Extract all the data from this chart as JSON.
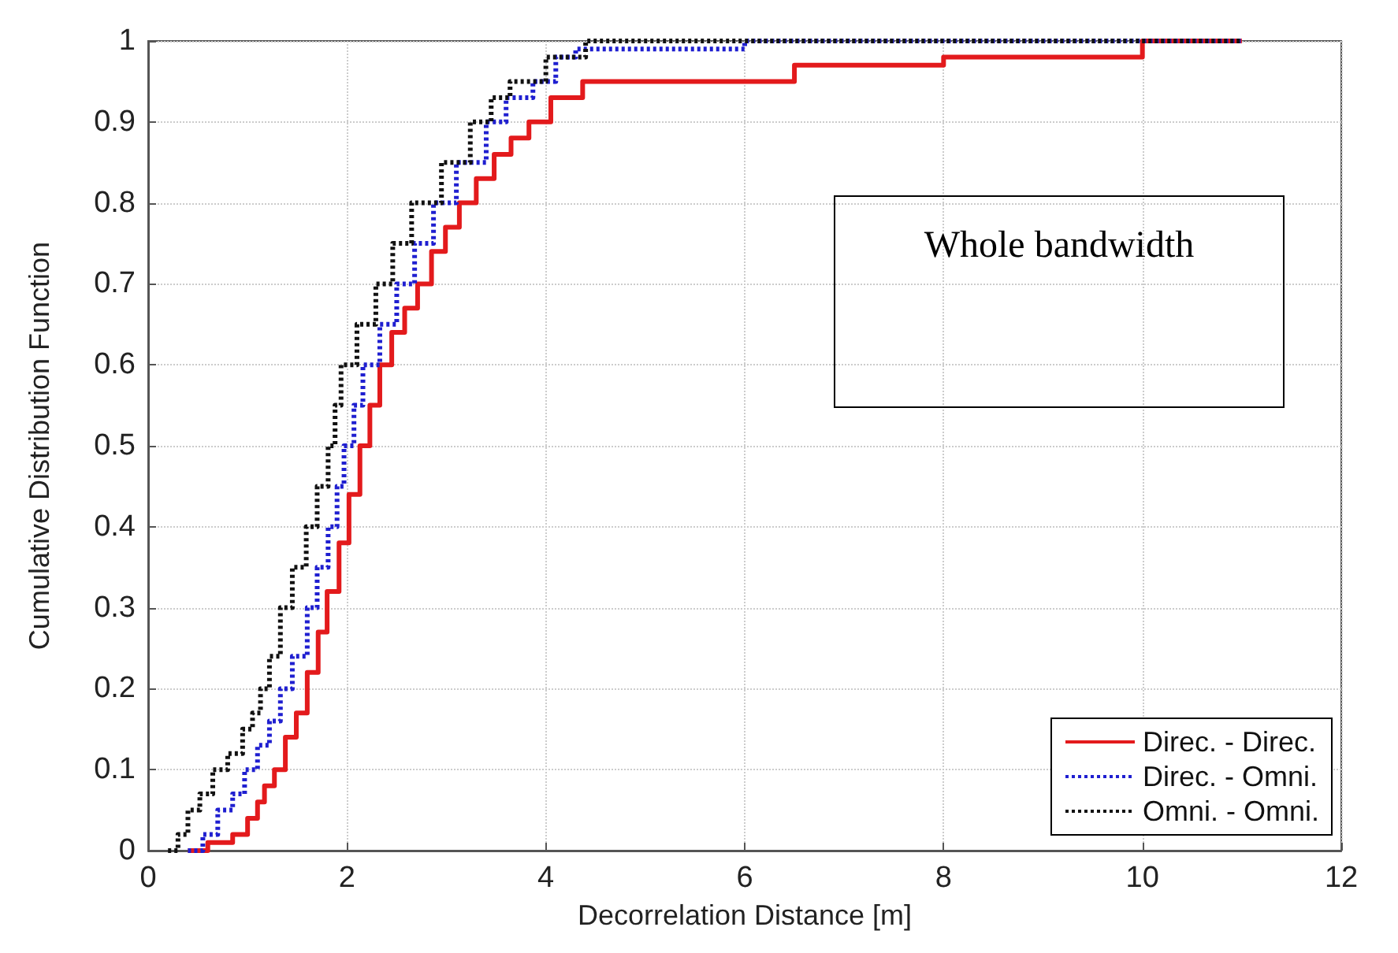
{
  "chart_data": {
    "type": "step",
    "xlabel": "Decorrelation Distance [m]",
    "ylabel": "Cumulative Distribution Function",
    "annotations": [
      "Whole bandwidth"
    ],
    "xlim": [
      0,
      12
    ],
    "xticks": [
      0,
      2,
      4,
      6,
      8,
      10,
      12
    ],
    "ylim": [
      0,
      1
    ],
    "yticks": [
      0,
      0.1,
      0.2,
      0.3,
      0.4,
      0.5,
      0.6,
      0.7,
      0.8,
      0.9,
      1
    ],
    "grid": true,
    "legend": "bottom right",
    "series": [
      {
        "name": "Direc. - Direc.",
        "color": "#e31a1c",
        "line_style": "solid",
        "x": [
          0.4,
          0.6,
          0.85,
          1.0,
          1.1,
          1.17,
          1.27,
          1.38,
          1.49,
          1.6,
          1.71,
          1.8,
          1.92,
          2.02,
          2.13,
          2.23,
          2.33,
          2.45,
          2.58,
          2.71,
          2.85,
          2.99,
          3.13,
          3.3,
          3.48,
          3.65,
          3.83,
          4.05,
          4.37,
          6.5,
          8,
          10,
          11
        ],
        "values": [
          0,
          0.01,
          0.02,
          0.04,
          0.06,
          0.08,
          0.1,
          0.14,
          0.17,
          0.22,
          0.27,
          0.32,
          0.38,
          0.44,
          0.5,
          0.55,
          0.6,
          0.64,
          0.67,
          0.7,
          0.74,
          0.77,
          0.8,
          0.83,
          0.86,
          0.88,
          0.9,
          0.93,
          0.95,
          0.97,
          0.98,
          1,
          1
        ]
      },
      {
        "name": "Direc. - Omni.",
        "color": "#1f1fd0",
        "line_style": "dotted",
        "x": [
          0.4,
          0.55,
          0.7,
          0.85,
          0.97,
          1.1,
          1.22,
          1.33,
          1.45,
          1.6,
          1.7,
          1.81,
          1.9,
          1.97,
          2.07,
          2.16,
          2.33,
          2.5,
          2.68,
          2.87,
          3.1,
          3.4,
          3.6,
          3.87,
          4.1,
          4.3,
          6,
          11
        ],
        "values": [
          0,
          0.02,
          0.05,
          0.07,
          0.1,
          0.13,
          0.16,
          0.2,
          0.24,
          0.3,
          0.35,
          0.4,
          0.45,
          0.5,
          0.55,
          0.6,
          0.65,
          0.7,
          0.75,
          0.8,
          0.85,
          0.9,
          0.93,
          0.95,
          0.98,
          0.99,
          1,
          1
        ]
      },
      {
        "name": "Omni. - Omni.",
        "color": "#111111",
        "line_style": "dotted",
        "x": [
          0.2,
          0.3,
          0.4,
          0.52,
          0.65,
          0.8,
          0.95,
          1.05,
          1.13,
          1.22,
          1.33,
          1.45,
          1.59,
          1.7,
          1.81,
          1.88,
          1.94,
          2.1,
          2.29,
          2.46,
          2.65,
          2.95,
          3.24,
          3.45,
          3.64,
          4.0,
          4.4,
          11
        ],
        "values": [
          0,
          0.02,
          0.05,
          0.07,
          0.1,
          0.12,
          0.15,
          0.17,
          0.2,
          0.24,
          0.3,
          0.35,
          0.4,
          0.45,
          0.5,
          0.55,
          0.6,
          0.65,
          0.7,
          0.75,
          0.8,
          0.85,
          0.9,
          0.93,
          0.95,
          0.98,
          1,
          1
        ]
      }
    ]
  }
}
